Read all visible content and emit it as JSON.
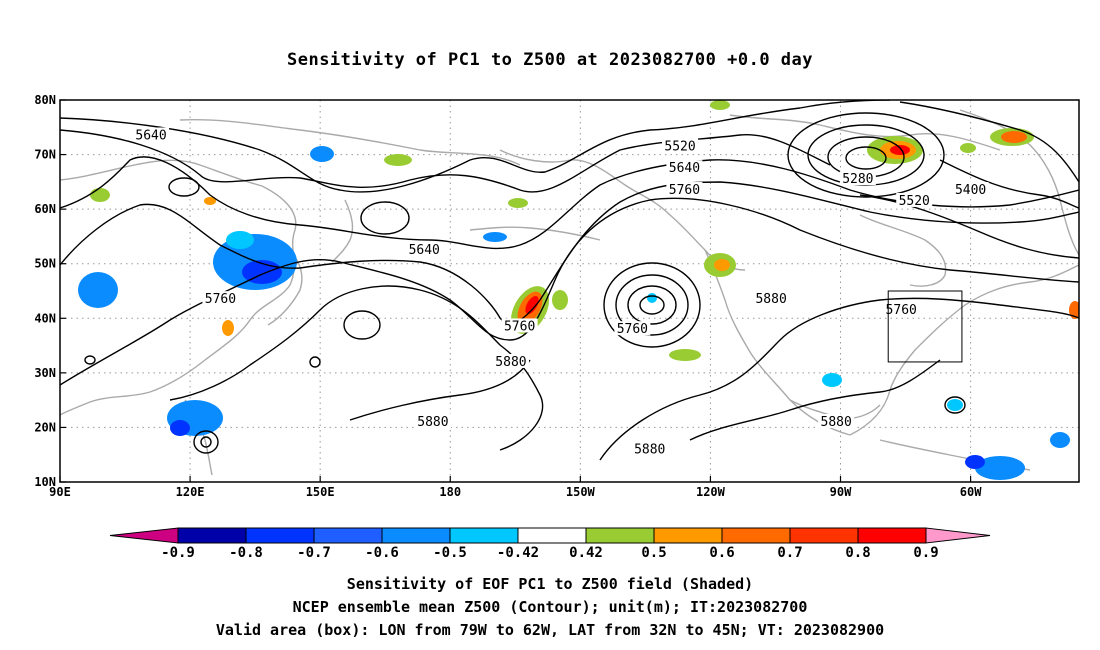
{
  "title": "Sensitivity of PC1 to Z500 at 2023082700 +0.0 day",
  "map": {
    "lon_range": [
      90,
      325
    ],
    "lat_range": [
      10,
      80
    ],
    "lon_ticks": [
      {
        "lon": 90,
        "label": "90E"
      },
      {
        "lon": 120,
        "label": "120E"
      },
      {
        "lon": 150,
        "label": "150E"
      },
      {
        "lon": 180,
        "label": "180"
      },
      {
        "lon": 210,
        "label": "150W"
      },
      {
        "lon": 240,
        "label": "120W"
      },
      {
        "lon": 270,
        "label": "90W"
      },
      {
        "lon": 300,
        "label": "60W"
      }
    ],
    "lat_ticks": [
      {
        "lat": 10,
        "label": "10N"
      },
      {
        "lat": 20,
        "label": "20N"
      },
      {
        "lat": 30,
        "label": "30N"
      },
      {
        "lat": 40,
        "label": "40N"
      },
      {
        "lat": 50,
        "label": "50N"
      },
      {
        "lat": 60,
        "label": "60N"
      },
      {
        "lat": 70,
        "label": "70N"
      },
      {
        "lat": 80,
        "label": "80N"
      }
    ],
    "grid_lines": "dotted",
    "contour_labels": [
      {
        "text": "5640",
        "lon": 111,
        "lat": 73.5
      },
      {
        "text": "5520",
        "lon": 233,
        "lat": 71.5
      },
      {
        "text": "5640",
        "lon": 234,
        "lat": 67.5
      },
      {
        "text": "5760",
        "lon": 234,
        "lat": 63.5
      },
      {
        "text": "5280",
        "lon": 274,
        "lat": 65.5
      },
      {
        "text": "5400",
        "lon": 300,
        "lat": 63.5
      },
      {
        "text": "5520",
        "lon": 287,
        "lat": 61.5
      },
      {
        "text": "5640",
        "lon": 174,
        "lat": 52.5
      },
      {
        "text": "5760",
        "lon": 127,
        "lat": 43.5
      },
      {
        "text": "5880",
        "lon": 254,
        "lat": 43.5
      },
      {
        "text": "5760",
        "lon": 284,
        "lat": 41.5
      },
      {
        "text": "5760",
        "lon": 196,
        "lat": 38.5
      },
      {
        "text": "5760",
        "lon": 222,
        "lat": 38.0
      },
      {
        "text": "5880",
        "lon": 194,
        "lat": 32.0
      },
      {
        "text": "5880",
        "lon": 176,
        "lat": 21.0
      },
      {
        "text": "5880",
        "lon": 226,
        "lat": 16.0
      },
      {
        "text": "5880",
        "lon": 269,
        "lat": 21.0
      }
    ],
    "valid_box": {
      "lon_min": 281,
      "lon_max": 298,
      "lat_min": 32,
      "lat_max": 45
    }
  },
  "colorbar": {
    "labels": [
      "-0.9",
      "-0.8",
      "-0.7",
      "-0.6",
      "-0.5",
      "-0.42",
      "0.42",
      "0.5",
      "0.6",
      "0.7",
      "0.8",
      "0.9"
    ],
    "colors": [
      "#0000a8",
      "#0033ff",
      "#1f5fff",
      "#0a8cff",
      "#00c8ff",
      "#ffffff",
      "#99cc33",
      "#ff9900",
      "#ff6a00",
      "#ff3300",
      "#ff0000"
    ],
    "low_end_color": "#cc0080",
    "high_end_color": "#ff99cc"
  },
  "captions": [
    "Sensitivity of EOF PC1 to Z500 field (Shaded)",
    "NCEP ensemble mean Z500 (Contour); unit(m); IT:2023082700",
    "Valid area (box): LON from 79W to 62W, LAT from 32N to 45N; VT: 2023082900"
  ],
  "colors": {
    "coastline": "#aaaaaa",
    "contour": "#000000",
    "grid": "#999999"
  }
}
